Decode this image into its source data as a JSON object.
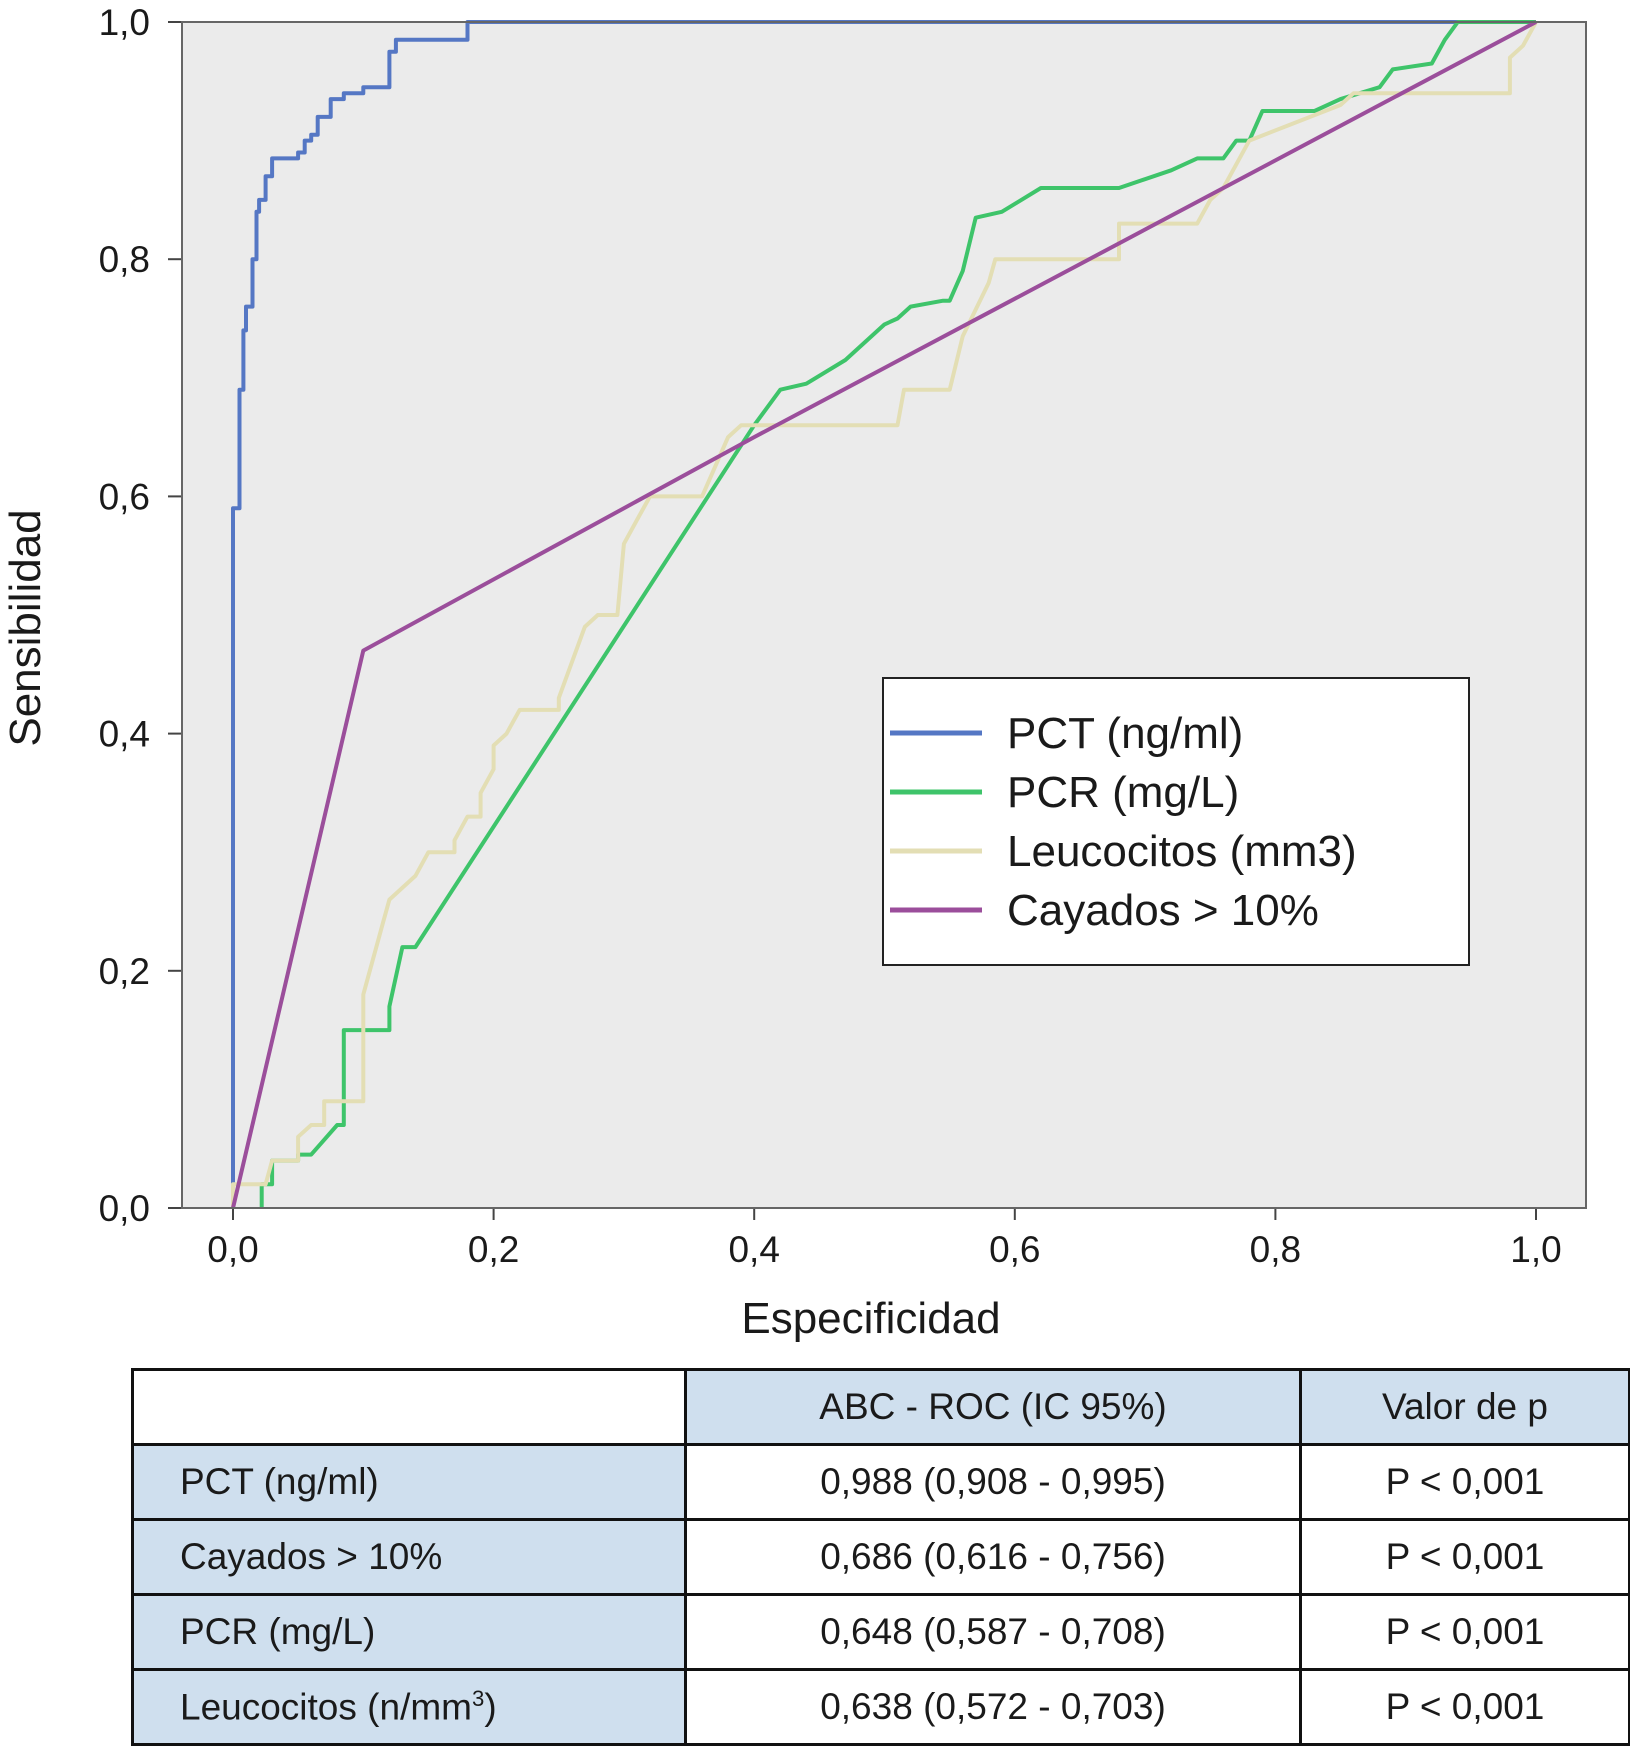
{
  "chart_data": {
    "type": "line",
    "xlabel": "Especificidad",
    "ylabel": "Sensibilidad",
    "xlim": [
      0.0,
      1.0
    ],
    "ylim": [
      0.0,
      1.0
    ],
    "x_ticks": [
      "0,0",
      "0,2",
      "0,4",
      "0,6",
      "0,8",
      "1,0"
    ],
    "y_ticks": [
      "0,0",
      "0,2",
      "0,4",
      "0,6",
      "0,8",
      "1,0"
    ],
    "background": "#ebebeb",
    "legend_position": "center-right",
    "series": [
      {
        "name": "PCT (ng/ml)",
        "color": "#5577c4",
        "points": [
          [
            0.0,
            0.0
          ],
          [
            0.0,
            0.59
          ],
          [
            0.005,
            0.59
          ],
          [
            0.005,
            0.69
          ],
          [
            0.008,
            0.69
          ],
          [
            0.008,
            0.74
          ],
          [
            0.01,
            0.74
          ],
          [
            0.01,
            0.76
          ],
          [
            0.015,
            0.76
          ],
          [
            0.015,
            0.8
          ],
          [
            0.018,
            0.8
          ],
          [
            0.018,
            0.84
          ],
          [
            0.02,
            0.84
          ],
          [
            0.02,
            0.85
          ],
          [
            0.025,
            0.85
          ],
          [
            0.025,
            0.87
          ],
          [
            0.03,
            0.87
          ],
          [
            0.03,
            0.885
          ],
          [
            0.05,
            0.885
          ],
          [
            0.05,
            0.89
          ],
          [
            0.055,
            0.89
          ],
          [
            0.055,
            0.9
          ],
          [
            0.06,
            0.9
          ],
          [
            0.06,
            0.905
          ],
          [
            0.065,
            0.905
          ],
          [
            0.065,
            0.92
          ],
          [
            0.075,
            0.92
          ],
          [
            0.075,
            0.935
          ],
          [
            0.085,
            0.935
          ],
          [
            0.085,
            0.94
          ],
          [
            0.1,
            0.94
          ],
          [
            0.1,
            0.945
          ],
          [
            0.12,
            0.945
          ],
          [
            0.12,
            0.975
          ],
          [
            0.125,
            0.975
          ],
          [
            0.125,
            0.985
          ],
          [
            0.18,
            0.985
          ],
          [
            0.18,
            1.0
          ],
          [
            1.0,
            1.0
          ]
        ]
      },
      {
        "name": "PCR (mg/L)",
        "color": "#3ec46a",
        "points": [
          [
            0.022,
            0.0
          ],
          [
            0.022,
            0.02
          ],
          [
            0.03,
            0.02
          ],
          [
            0.03,
            0.04
          ],
          [
            0.05,
            0.04
          ],
          [
            0.05,
            0.045
          ],
          [
            0.06,
            0.045
          ],
          [
            0.08,
            0.07
          ],
          [
            0.085,
            0.07
          ],
          [
            0.085,
            0.15
          ],
          [
            0.12,
            0.15
          ],
          [
            0.12,
            0.17
          ],
          [
            0.13,
            0.22
          ],
          [
            0.14,
            0.22
          ],
          [
            0.4,
            0.66
          ],
          [
            0.42,
            0.69
          ],
          [
            0.44,
            0.695
          ],
          [
            0.47,
            0.715
          ],
          [
            0.5,
            0.745
          ],
          [
            0.51,
            0.75
          ],
          [
            0.52,
            0.76
          ],
          [
            0.545,
            0.765
          ],
          [
            0.55,
            0.765
          ],
          [
            0.56,
            0.79
          ],
          [
            0.57,
            0.835
          ],
          [
            0.59,
            0.84
          ],
          [
            0.62,
            0.86
          ],
          [
            0.68,
            0.86
          ],
          [
            0.72,
            0.875
          ],
          [
            0.74,
            0.885
          ],
          [
            0.76,
            0.885
          ],
          [
            0.77,
            0.9
          ],
          [
            0.78,
            0.9
          ],
          [
            0.79,
            0.925
          ],
          [
            0.83,
            0.925
          ],
          [
            0.85,
            0.935
          ],
          [
            0.88,
            0.945
          ],
          [
            0.89,
            0.96
          ],
          [
            0.92,
            0.965
          ],
          [
            0.93,
            0.985
          ],
          [
            0.94,
            1.0
          ],
          [
            1.0,
            1.0
          ]
        ]
      },
      {
        "name": "Leucocitos (mm3)",
        "color": "#e3deb4",
        "points": [
          [
            0.0,
            0.0
          ],
          [
            0.0,
            0.02
          ],
          [
            0.025,
            0.02
          ],
          [
            0.03,
            0.04
          ],
          [
            0.05,
            0.04
          ],
          [
            0.05,
            0.06
          ],
          [
            0.06,
            0.07
          ],
          [
            0.07,
            0.07
          ],
          [
            0.07,
            0.09
          ],
          [
            0.1,
            0.09
          ],
          [
            0.1,
            0.18
          ],
          [
            0.105,
            0.2
          ],
          [
            0.11,
            0.22
          ],
          [
            0.115,
            0.24
          ],
          [
            0.12,
            0.26
          ],
          [
            0.14,
            0.28
          ],
          [
            0.15,
            0.3
          ],
          [
            0.17,
            0.3
          ],
          [
            0.17,
            0.31
          ],
          [
            0.18,
            0.33
          ],
          [
            0.19,
            0.33
          ],
          [
            0.19,
            0.35
          ],
          [
            0.2,
            0.37
          ],
          [
            0.2,
            0.39
          ],
          [
            0.21,
            0.4
          ],
          [
            0.215,
            0.41
          ],
          [
            0.22,
            0.42
          ],
          [
            0.25,
            0.42
          ],
          [
            0.25,
            0.43
          ],
          [
            0.27,
            0.49
          ],
          [
            0.28,
            0.5
          ],
          [
            0.295,
            0.5
          ],
          [
            0.3,
            0.56
          ],
          [
            0.31,
            0.58
          ],
          [
            0.32,
            0.6
          ],
          [
            0.36,
            0.6
          ],
          [
            0.38,
            0.65
          ],
          [
            0.39,
            0.66
          ],
          [
            0.51,
            0.66
          ],
          [
            0.515,
            0.69
          ],
          [
            0.55,
            0.69
          ],
          [
            0.56,
            0.735
          ],
          [
            0.58,
            0.78
          ],
          [
            0.585,
            0.8
          ],
          [
            0.68,
            0.8
          ],
          [
            0.68,
            0.83
          ],
          [
            0.74,
            0.83
          ],
          [
            0.75,
            0.85
          ],
          [
            0.76,
            0.86
          ],
          [
            0.77,
            0.88
          ],
          [
            0.78,
            0.9
          ],
          [
            0.85,
            0.93
          ],
          [
            0.86,
            0.94
          ],
          [
            0.98,
            0.94
          ],
          [
            0.98,
            0.97
          ],
          [
            0.99,
            0.98
          ],
          [
            1.0,
            1.0
          ]
        ]
      },
      {
        "name": "Cayados > 10%",
        "color": "#9b4e9b",
        "points": [
          [
            0.0,
            0.0
          ],
          [
            0.1,
            0.47
          ],
          [
            0.4,
            0.65
          ],
          [
            1.0,
            1.0
          ]
        ]
      }
    ]
  },
  "table": {
    "headers": [
      "",
      "ABC - ROC (IC 95%)",
      "Valor de p"
    ],
    "rows": [
      {
        "label": "PCT (ng/ml)",
        "auc": "0,988 (0,908 - 0,995)",
        "p": "P < 0,001"
      },
      {
        "label": "Cayados > 10%",
        "auc": "0,686 (0,616 - 0,756)",
        "p": "P < 0,001"
      },
      {
        "label": "PCR (mg/L)",
        "auc": "0,648 (0,587 - 0,708)",
        "p": "P < 0,001"
      },
      {
        "label": "Leucocitos (n/mm",
        "label_sup": "3",
        "label_tail": ")",
        "auc": "0,638 (0,572 - 0,703)",
        "p": "P < 0,001"
      }
    ]
  }
}
